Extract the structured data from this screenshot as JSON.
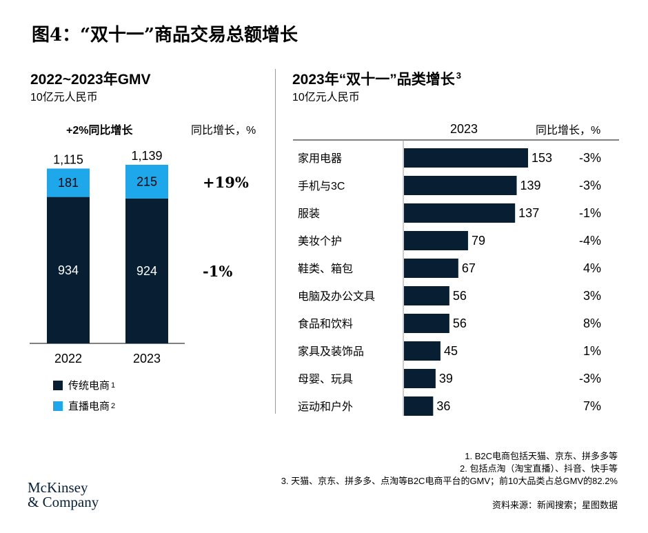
{
  "title": "图4：“双十一”商品交易总额增长",
  "left": {
    "title": "2022~2023年GMV",
    "subtitle": "10亿元人民币",
    "col_header_bold": "+2%同比增长",
    "col_header_right": "同比增长，%",
    "growth_live": "+19%",
    "growth_traditional": "-1%",
    "legend": [
      {
        "label": "传统电商",
        "sup": "1",
        "color": "#071e33"
      },
      {
        "label": "直播电商",
        "sup": "2",
        "color": "#1ea7ea"
      }
    ]
  },
  "right": {
    "title": "2023年“双十一”品类增长",
    "title_sup": "3",
    "subtitle": "10亿元人民币",
    "col_header_year": "2023",
    "col_header_growth": "同比增长，%"
  },
  "chart_data": [
    {
      "type": "bar",
      "stacked": true,
      "categories": [
        "2022",
        "2023"
      ],
      "series": [
        {
          "name": "传统电商",
          "values": [
            934,
            924
          ],
          "color": "#071e33"
        },
        {
          "name": "直播电商",
          "values": [
            181,
            215
          ],
          "color": "#1ea7ea"
        }
      ],
      "totals": [
        "1,115",
        "1,139"
      ],
      "ylim": [
        0,
        1139
      ]
    },
    {
      "type": "bar",
      "orientation": "horizontal",
      "categories": [
        "家用电器",
        "手机与3C",
        "服装",
        "美妆个护",
        "鞋类、箱包",
        "电脑及办公文具",
        "食品和饮料",
        "家具及装饰品",
        "母婴、玩具",
        "运动和户外"
      ],
      "values": [
        153,
        139,
        137,
        79,
        67,
        56,
        56,
        45,
        39,
        36
      ],
      "growth": [
        "-3%",
        "-3%",
        "-1%",
        "-4%",
        "4%",
        "3%",
        "8%",
        "1%",
        "-3%",
        "7%"
      ],
      "color": "#071e33",
      "xlim": [
        0,
        153
      ]
    }
  ],
  "footnotes": [
    "1. B2C电商包括天猫、京东、拼多多等",
    "2. 包括点淘（淘宝直播）、抖音、快手等",
    "3. 天猫、京东、拼多多、点淘等B2C电商平台的GMV；前10大品类占总GMV的82.2%"
  ],
  "source": "资料来源：新闻搜索；星图数据",
  "logo_lines": [
    "McKinsey",
    "& Company"
  ]
}
